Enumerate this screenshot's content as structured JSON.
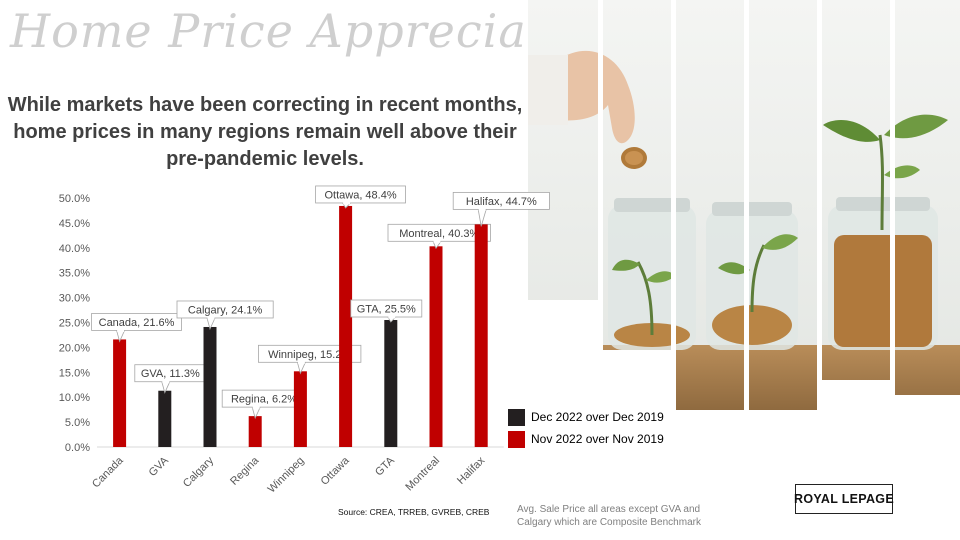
{
  "slide": {
    "title": "Home Price Appreciation",
    "subtitle_line1": "While markets have been correcting in recent months,",
    "subtitle_line2": "home prices in many regions remain well above their",
    "subtitle_line3": "pre-pandemic levels.",
    "source": "Source: CREA, TRREB, GVREB, CREB",
    "note_line1": "Avg. Sale Price all areas except GVA and",
    "note_line2": "Calgary which are Composite Benchmark",
    "logo_text": "ROYAL LEPAGE"
  },
  "chart_data": {
    "type": "bar",
    "categories": [
      "Canada",
      "GVA",
      "Calgary",
      "Regina",
      "Winnipeg",
      "Ottawa",
      "GTA",
      "Montreal",
      "Halifax"
    ],
    "values": [
      21.6,
      11.3,
      24.1,
      6.2,
      15.2,
      48.4,
      25.5,
      40.3,
      44.7
    ],
    "series_index": [
      1,
      0,
      0,
      1,
      1,
      1,
      0,
      1,
      1
    ],
    "series": [
      {
        "name": "Dec 2022 over Dec 2019",
        "color": "#231f20"
      },
      {
        "name": "Nov 2022 over Nov 2019",
        "color": "#c00000"
      }
    ],
    "data_labels": [
      "Canada, 21.6%",
      "GVA, 11.3%",
      "Calgary, 24.1%",
      "Regina, 6.2%",
      "Winnipeg, 15.2%",
      "Ottawa, 48.4%",
      "GTA, 25.5%",
      "Montreal, 40.3%",
      "Halifax, 44.7%"
    ],
    "yticks": [
      "0.0%",
      "5.0%",
      "10.0%",
      "15.0%",
      "20.0%",
      "25.0%",
      "30.0%",
      "35.0%",
      "40.0%",
      "45.0%",
      "50.0%"
    ],
    "ylim": [
      0,
      50
    ],
    "legend_position": "right",
    "grid": false
  }
}
